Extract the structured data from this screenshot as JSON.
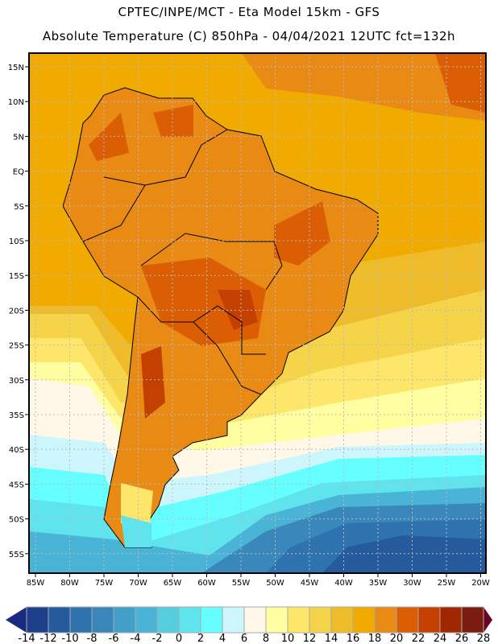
{
  "header": {
    "title": "CPTEC/INPE/MCT -  Eta Model 15km - GFS",
    "subtitle": "Absolute Temperature (C) 850hPa - 04/04/2021 12UTC fct=132h"
  },
  "map": {
    "background_color": "#f0aa00",
    "lat_labels": [
      "15N",
      "10N",
      "5N",
      "EQ",
      "5S",
      "10S",
      "15S",
      "20S",
      "25S",
      "30S",
      "35S",
      "40S",
      "45S",
      "50S",
      "55S"
    ],
    "lon_labels": [
      "85W",
      "80W",
      "75W",
      "70W",
      "65W",
      "60W",
      "55W",
      "50W",
      "45W",
      "40W",
      "35W",
      "30W",
      "25W",
      "20W"
    ]
  },
  "colorbar": {
    "labels": [
      "-14",
      "-12",
      "-10",
      "-8",
      "-6",
      "-4",
      "-2",
      "0",
      "2",
      "4",
      "6",
      "8",
      "10",
      "12",
      "14",
      "16",
      "18",
      "20",
      "22",
      "24",
      "26",
      "28"
    ],
    "colors": [
      "#1e3f8c",
      "#255b9c",
      "#2e73ad",
      "#3a88bb",
      "#42a0c8",
      "#4ab4d6",
      "#55cfe0",
      "#5fe3ec",
      "#66ffff",
      "#ccf5fc",
      "#fff8e8",
      "#fffea0",
      "#fde66a",
      "#f6d44a",
      "#eebc2a",
      "#f0aa00",
      "#e88a14",
      "#db5e04",
      "#c44000",
      "#a02800",
      "#7a1c10"
    ],
    "low_color": "#1a2a80",
    "high_color": "#6e0026"
  }
}
